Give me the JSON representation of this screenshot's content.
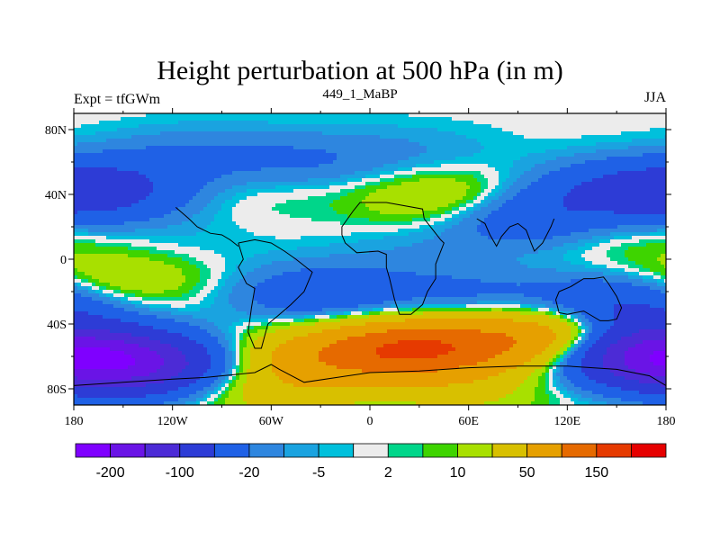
{
  "header": {
    "title": "Height perturbation at 500 hPa (in m)",
    "left_string": "Expt = tfGWm",
    "center_string": "449_1_MaBP",
    "right_string": "JJA"
  },
  "chart_data": {
    "type": "heatmap",
    "x_ticks": [
      "180",
      "120W",
      "60W",
      "0",
      "60E",
      "120E",
      "180"
    ],
    "x_tick_values": [
      -180,
      -120,
      -60,
      0,
      60,
      120,
      180
    ],
    "y_ticks": [
      "80N",
      "40N",
      "0",
      "40S",
      "80S"
    ],
    "y_tick_values": [
      80,
      40,
      0,
      -40,
      -80
    ],
    "xlim": [
      -180,
      180
    ],
    "ylim": [
      -90,
      90
    ],
    "colorbar": {
      "colors": [
        "#7f00ff",
        "#6a14e6",
        "#4c2bd6",
        "#2d3cd6",
        "#1f61e6",
        "#2e86df",
        "#1aa3e0",
        "#00c0dc",
        "#ececec",
        "#00d68a",
        "#3ed400",
        "#a8e000",
        "#d8c000",
        "#e6a000",
        "#e66a00",
        "#e63a00",
        "#e60000"
      ],
      "labels": [
        "-200",
        "-100",
        "-20",
        "-5",
        "2",
        "10",
        "50",
        "150"
      ]
    },
    "field_blobs": [
      {
        "lon": -110,
        "lat": 62,
        "value": -20
      },
      {
        "lon": -40,
        "lat": 60,
        "value": -20
      },
      {
        "lon": 30,
        "lat": 64,
        "value": -10
      },
      {
        "lon": -165,
        "lat": 42,
        "value": -60
      },
      {
        "lon": 150,
        "lat": 42,
        "value": -40
      },
      {
        "lon": -70,
        "lat": 44,
        "value": 8
      },
      {
        "lon": 45,
        "lat": 38,
        "value": 30
      },
      {
        "lon": 95,
        "lat": 26,
        "value": -40
      },
      {
        "lon": 155,
        "lat": 14,
        "value": 10
      },
      {
        "lon": 30,
        "lat": 5,
        "value": -8
      },
      {
        "lon": -120,
        "lat": 8,
        "value": -6
      },
      {
        "lon": -150,
        "lat": -12,
        "value": 25
      },
      {
        "lon": -30,
        "lat": -22,
        "value": -40
      },
      {
        "lon": 60,
        "lat": -25,
        "value": -25
      },
      {
        "lon": 150,
        "lat": -30,
        "value": -60
      },
      {
        "lon": -145,
        "lat": -65,
        "value": -150
      },
      {
        "lon": 30,
        "lat": -55,
        "value": 140
      },
      {
        "lon": -30,
        "lat": -60,
        "value": 60
      },
      {
        "lon": 110,
        "lat": -48,
        "value": 100
      },
      {
        "lon": -60,
        "lat": -80,
        "value": 30
      },
      {
        "lon": 60,
        "lat": -82,
        "value": 20
      },
      {
        "lon": 165,
        "lat": -58,
        "value": -150
      }
    ]
  }
}
